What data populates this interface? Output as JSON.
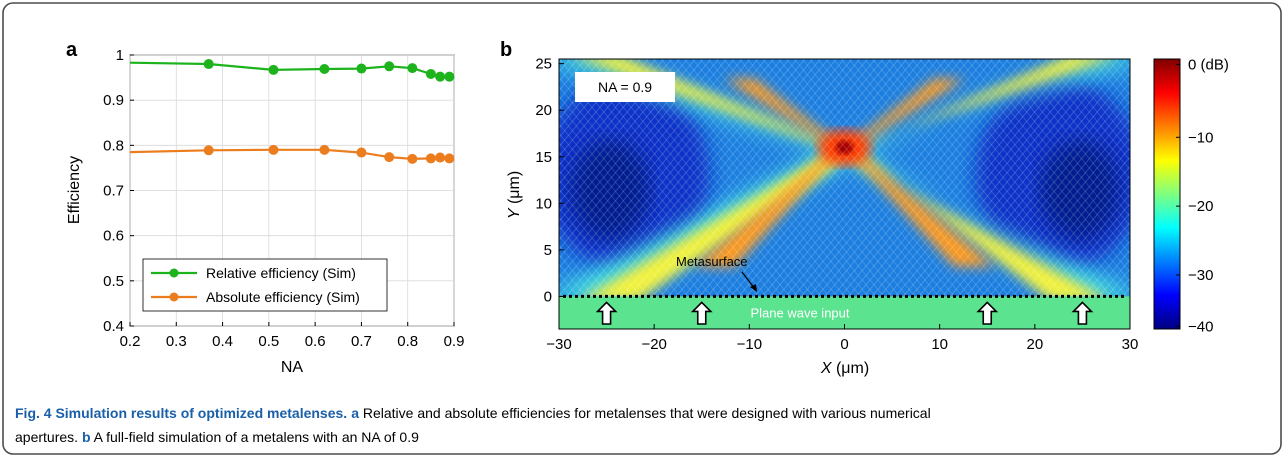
{
  "figure": {
    "caption_title": "Fig. 4 Simulation results of optimized metalenses.",
    "caption_a_label": "a",
    "caption_a_text": " Relative and absolute efficiencies for metalenses that were designed with various numerical",
    "caption_line2_text": "apertures. ",
    "caption_b_label": "b",
    "caption_b_text": " A full-field simulation of a metalens with an NA of 0.9"
  },
  "chart_data": [
    {
      "type": "line",
      "panel_label": "a",
      "xlabel": "NA",
      "ylabel": "Efficiency",
      "xlim": [
        0.2,
        0.9
      ],
      "ylim": [
        0.4,
        1.0
      ],
      "xticks": [
        "0.2",
        "0.3",
        "0.4",
        "0.5",
        "0.6",
        "0.7",
        "0.8",
        "0.9"
      ],
      "yticks": [
        "0.4",
        "0.5",
        "0.6",
        "0.7",
        "0.8",
        "0.9",
        "1"
      ],
      "grid": true,
      "legend_position": "bottom-left",
      "series": [
        {
          "name": "Relative efficiency (Sim)",
          "color": "#1db31d",
          "x": [
            0.2,
            0.37,
            0.51,
            0.62,
            0.7,
            0.76,
            0.81,
            0.85,
            0.87,
            0.89
          ],
          "y": [
            0.983,
            0.98,
            0.967,
            0.969,
            0.97,
            0.975,
            0.971,
            0.958,
            0.952,
            0.952
          ]
        },
        {
          "name": "Absolute efficiency (Sim)",
          "color": "#ec7d1f",
          "x": [
            0.2,
            0.37,
            0.51,
            0.62,
            0.7,
            0.76,
            0.81,
            0.85,
            0.87,
            0.89
          ],
          "y": [
            0.785,
            0.789,
            0.79,
            0.79,
            0.784,
            0.774,
            0.77,
            0.771,
            0.773,
            0.771
          ]
        }
      ]
    },
    {
      "type": "heatmap",
      "panel_label": "b",
      "xlabel_italic": "X",
      "xlabel_unit": " (μm)",
      "ylabel_italic": "Y",
      "ylabel_unit": " (μm)",
      "xlim": [
        -30,
        30
      ],
      "ylim": [
        -3.5,
        25.5
      ],
      "xticks": [
        "−30",
        "−20",
        "−10",
        "0",
        "10",
        "20",
        "30"
      ],
      "yticks": [
        "0",
        "5",
        "10",
        "15",
        "20",
        "25"
      ],
      "focus": {
        "x": 0,
        "y": 16
      },
      "na_label": "NA = 0.9",
      "metasurface_label": "Metasurface",
      "input_label": "Plane wave input",
      "arrow_x": [
        -25,
        -15,
        15,
        25
      ],
      "colorbar": {
        "min": -40,
        "max": 0,
        "ticks": [
          "0 (dB)",
          "−10",
          "−20",
          "−30",
          "−40"
        ],
        "colors": [
          "#7f0000",
          "#ff0000",
          "#ff7f00",
          "#ffff00",
          "#7fff7f",
          "#00ffff",
          "#007fff",
          "#0000ff",
          "#00007f"
        ]
      }
    }
  ]
}
